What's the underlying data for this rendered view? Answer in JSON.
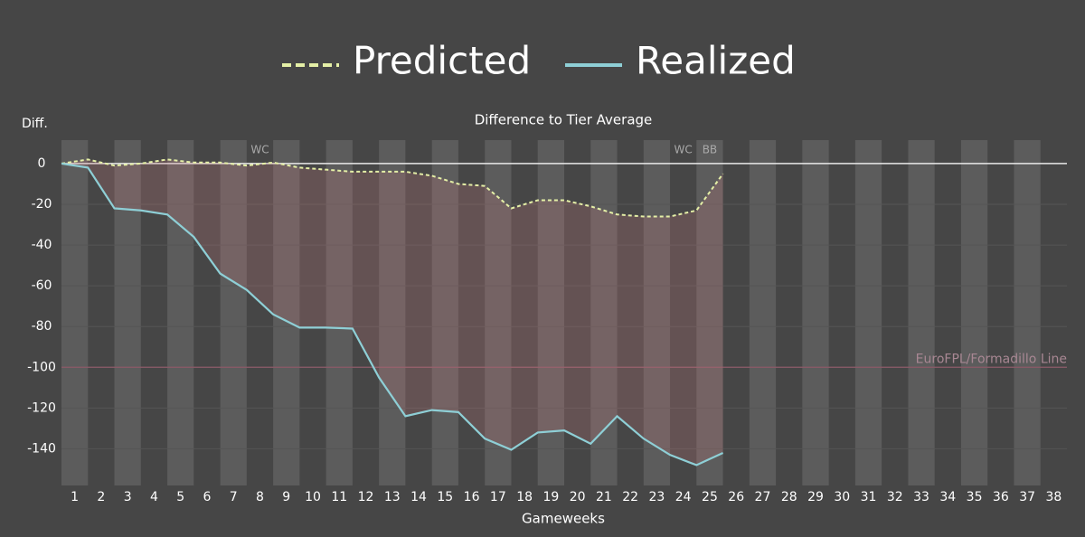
{
  "chart_data": {
    "type": "line",
    "title": "Difference to Tier Average",
    "ylabel": "Diff.",
    "xlabel": "Gameweeks",
    "x": [
      0,
      1,
      2,
      3,
      4,
      5,
      6,
      7,
      8,
      9,
      10,
      11,
      12,
      13,
      14,
      15,
      16,
      17,
      18,
      19,
      20,
      21,
      22,
      23,
      24,
      25
    ],
    "series": [
      {
        "name": "Predicted",
        "color": "#e4efa6",
        "dashed": true,
        "values": [
          0,
          2,
          -1,
          0,
          2,
          0.5,
          0.5,
          -1,
          0.5,
          -2,
          -3,
          -4,
          -4,
          -4,
          -6,
          -10,
          -11,
          -22,
          -18,
          -18,
          -21,
          -25,
          -26,
          -26,
          -23,
          -5
        ]
      },
      {
        "name": "Realized",
        "color": "#8ecfd6",
        "dashed": false,
        "values": [
          0,
          -2,
          -22,
          -23,
          -25,
          -36,
          -54,
          -62,
          -74,
          -80.5,
          -80.5,
          -81,
          -105,
          -124,
          -121,
          -122,
          -135,
          -140.5,
          -132,
          -131,
          -137.5,
          -124,
          -135,
          -143,
          -148,
          -142
        ]
      }
    ],
    "fill_between": true,
    "xlim": [
      0,
      38
    ],
    "ylim": [
      -158,
      11.5
    ],
    "yticks": [
      0,
      -20,
      -40,
      -60,
      -80,
      -100,
      -120,
      -140
    ],
    "xticks": [
      {
        "value": 0.5,
        "label": "1"
      },
      {
        "value": 1.5,
        "label": "2"
      },
      {
        "value": 2.5,
        "label": "3"
      },
      {
        "value": 3.5,
        "label": "4"
      },
      {
        "value": 4.5,
        "label": "5"
      },
      {
        "value": 5.5,
        "label": "6"
      },
      {
        "value": 6.5,
        "label": "7"
      },
      {
        "value": 7.5,
        "label": "8"
      },
      {
        "value": 8.5,
        "label": "9"
      },
      {
        "value": 9.5,
        "label": "10"
      },
      {
        "value": 10.5,
        "label": "11"
      },
      {
        "value": 11.5,
        "label": "12"
      },
      {
        "value": 12.5,
        "label": "13"
      },
      {
        "value": 13.5,
        "label": "14"
      },
      {
        "value": 14.5,
        "label": "15"
      },
      {
        "value": 15.5,
        "label": "16"
      },
      {
        "value": 16.5,
        "label": "17"
      },
      {
        "value": 17.5,
        "label": "18"
      },
      {
        "value": 18.5,
        "label": "19"
      },
      {
        "value": 19.5,
        "label": "20"
      },
      {
        "value": 20.5,
        "label": "21"
      },
      {
        "value": 21.5,
        "label": "22"
      },
      {
        "value": 22.5,
        "label": "23"
      },
      {
        "value": 23.5,
        "label": "24"
      },
      {
        "value": 24.5,
        "label": "25"
      },
      {
        "value": 25.5,
        "label": "26"
      },
      {
        "value": 26.5,
        "label": "27"
      },
      {
        "value": 27.5,
        "label": "28"
      },
      {
        "value": 28.5,
        "label": "29"
      },
      {
        "value": 29.5,
        "label": "30"
      },
      {
        "value": 30.5,
        "label": "31"
      },
      {
        "value": 31.5,
        "label": "32"
      },
      {
        "value": 32.5,
        "label": "33"
      },
      {
        "value": 33.5,
        "label": "34"
      },
      {
        "value": 34.5,
        "label": "35"
      },
      {
        "value": 35.5,
        "label": "36"
      },
      {
        "value": 36.5,
        "label": "37"
      },
      {
        "value": 37.5,
        "label": "38"
      }
    ],
    "reference_line": {
      "value": -100,
      "label": "EuroFPL/Formadillo Line",
      "color": "#8c5b69"
    },
    "annotations": [
      {
        "text": "WC",
        "x": 7.5
      },
      {
        "text": "WC",
        "x": 23.5
      },
      {
        "text": "BB",
        "x": 24.5
      }
    ],
    "grid": true
  }
}
